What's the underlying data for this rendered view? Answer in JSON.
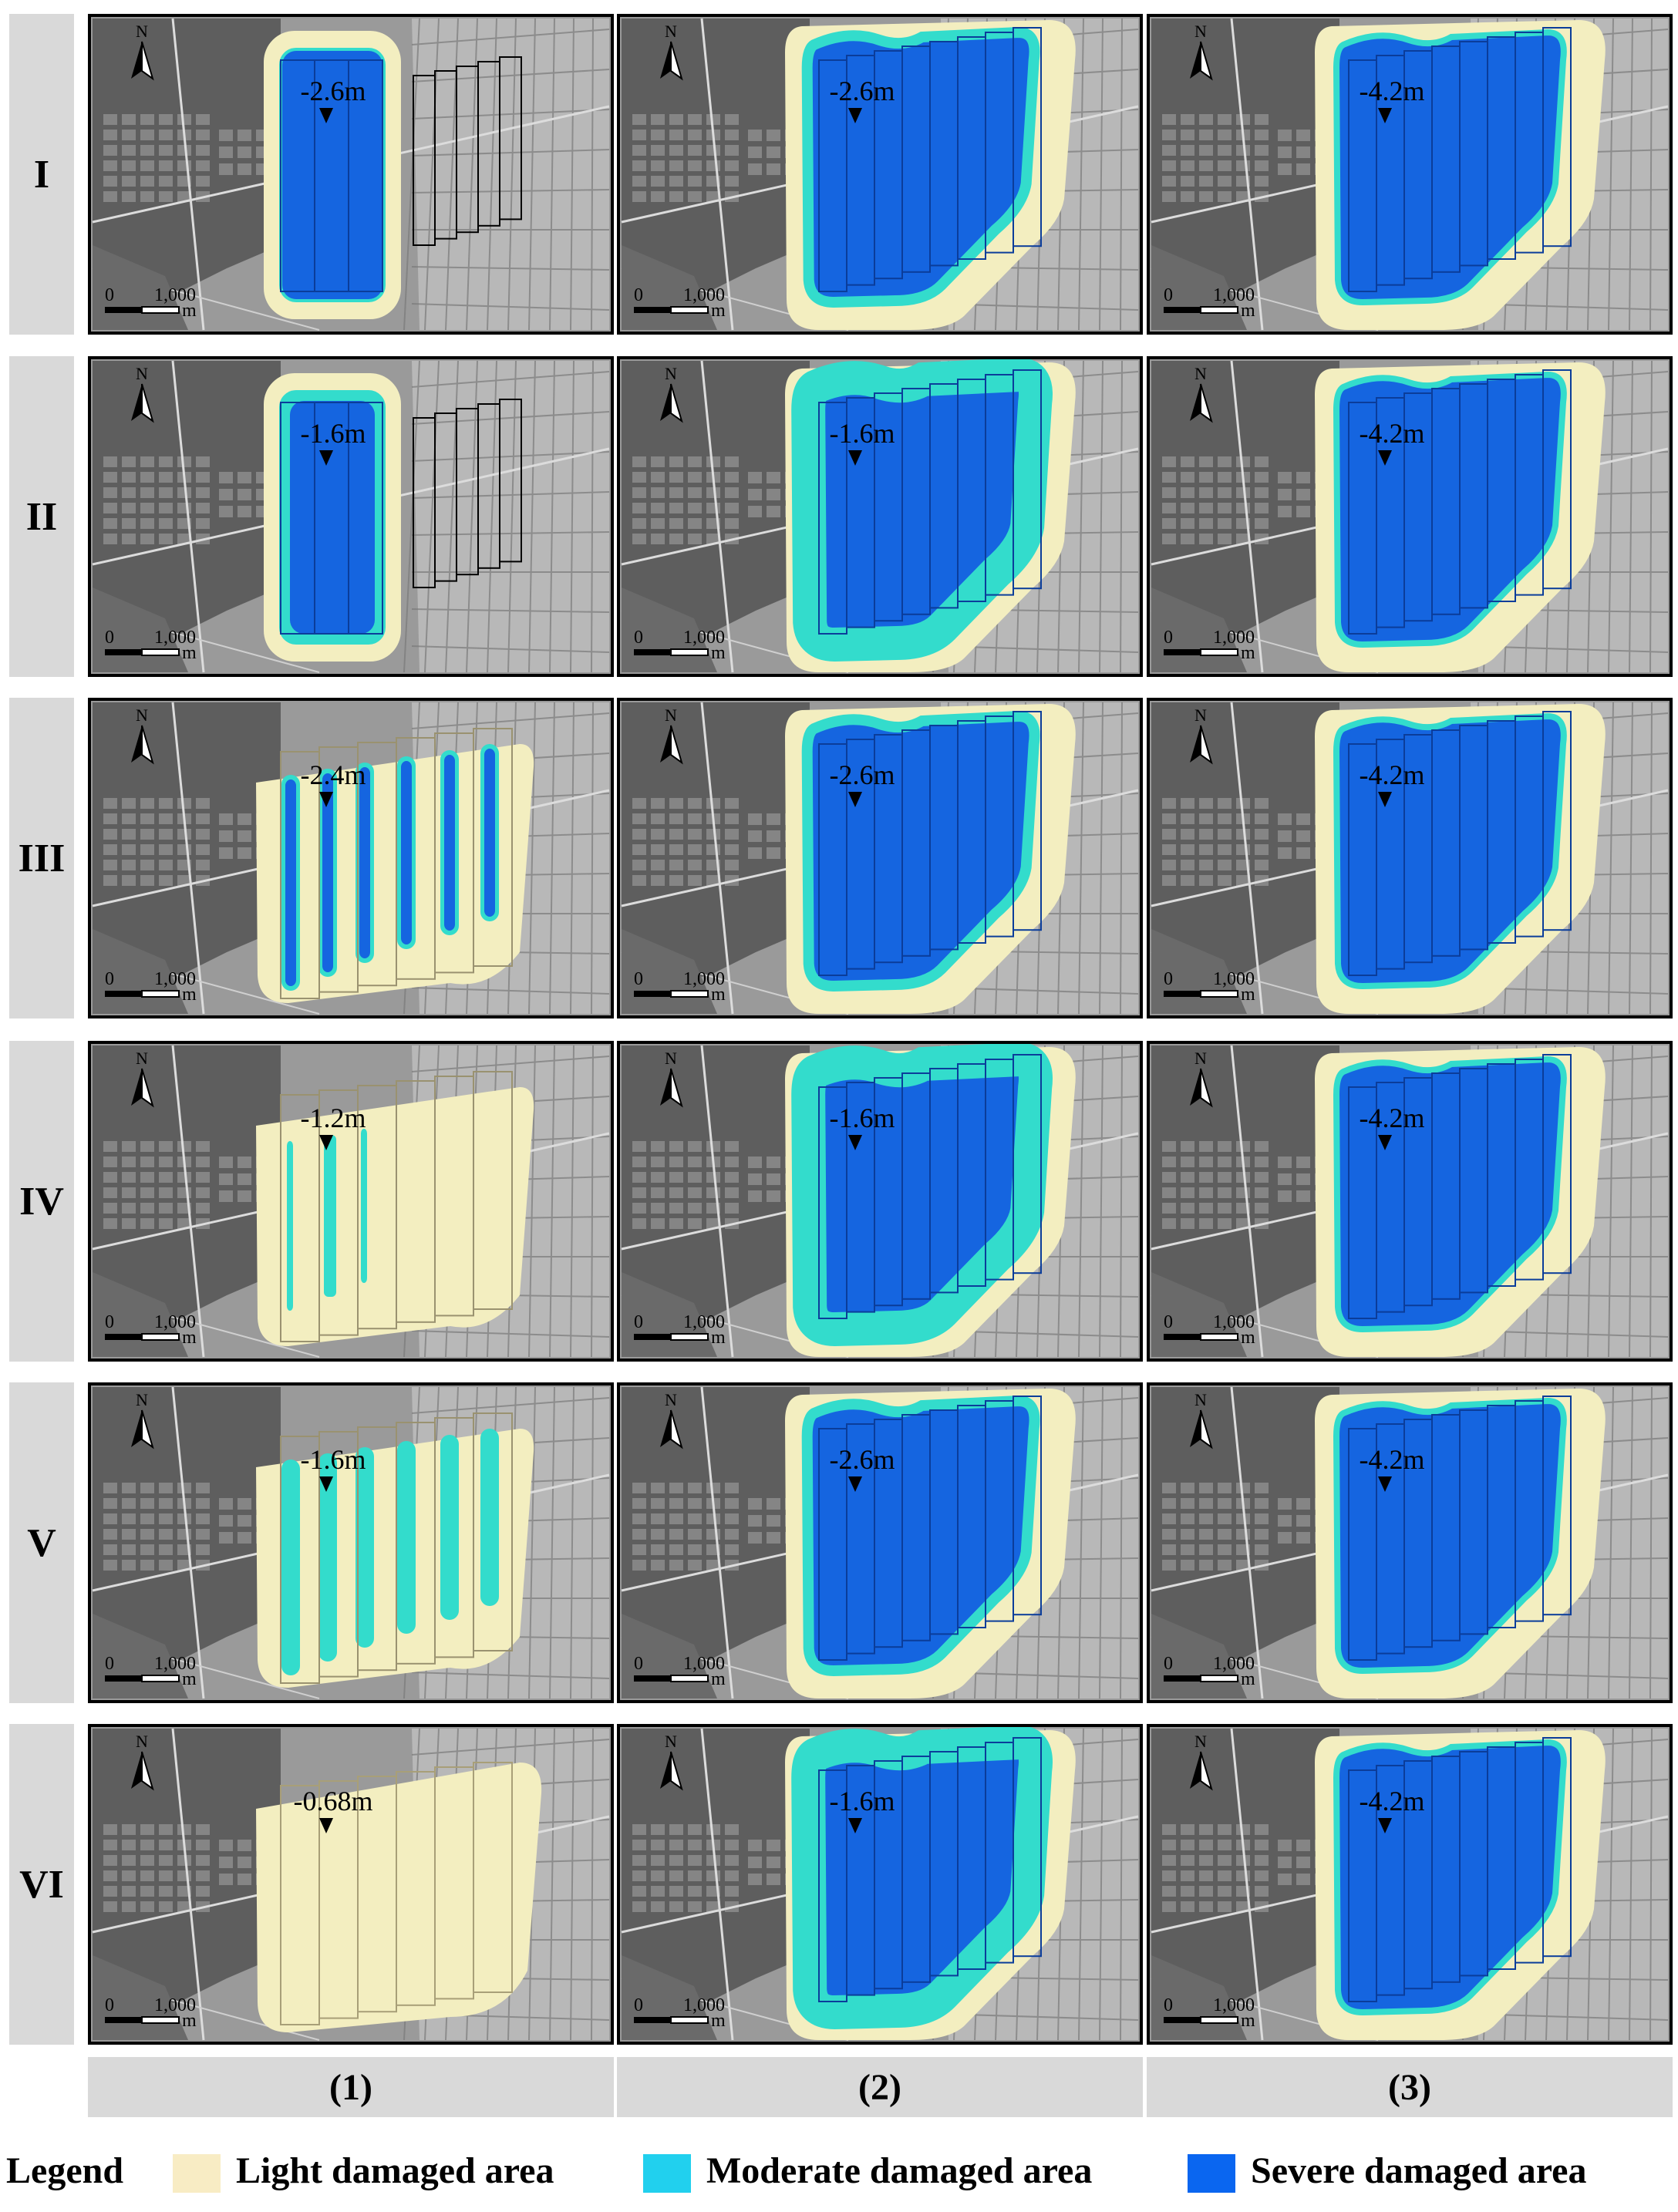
{
  "rows": [
    {
      "label": "I",
      "panels": [
        {
          "depth": "-2.6m",
          "variant": "c1-full"
        },
        {
          "depth": "-2.6m",
          "variant": "c2-severe"
        },
        {
          "depth": "-4.2m",
          "variant": "c3"
        }
      ]
    },
    {
      "label": "II",
      "panels": [
        {
          "depth": "-1.6m",
          "variant": "c1-mod"
        },
        {
          "depth": "-1.6m",
          "variant": "c2-mod"
        },
        {
          "depth": "-4.2m",
          "variant": "c3"
        }
      ]
    },
    {
      "label": "III",
      "panels": [
        {
          "depth": "-2.4m",
          "variant": "c1-strips-severe"
        },
        {
          "depth": "-2.6m",
          "variant": "c2-severe"
        },
        {
          "depth": "-4.2m",
          "variant": "c3"
        }
      ]
    },
    {
      "label": "IV",
      "panels": [
        {
          "depth": "-1.2m",
          "variant": "c1-strips-thin"
        },
        {
          "depth": "-1.6m",
          "variant": "c2-mod"
        },
        {
          "depth": "-4.2m",
          "variant": "c3"
        }
      ]
    },
    {
      "label": "V",
      "panels": [
        {
          "depth": "-1.6m",
          "variant": "c1-strips-mod"
        },
        {
          "depth": "-2.6m",
          "variant": "c2-severe"
        },
        {
          "depth": "-4.2m",
          "variant": "c3"
        }
      ]
    },
    {
      "label": "VI",
      "panels": [
        {
          "depth": "-0.68m",
          "variant": "c1-light"
        },
        {
          "depth": "-1.6m",
          "variant": "c2-mod"
        },
        {
          "depth": "-4.2m",
          "variant": "c3"
        }
      ]
    }
  ],
  "columns": [
    "(1)",
    "(2)",
    "(3)"
  ],
  "map": {
    "north": "N",
    "scale_zero": "0",
    "scale_value": "1,000",
    "scale_unit": "m"
  },
  "legend": {
    "title": "Legend",
    "items": [
      {
        "label": "Light damaged area",
        "color": "#f8ecc4"
      },
      {
        "label": "Moderate damaged area",
        "color": "#21d0ee"
      },
      {
        "label": "Severe damaged area",
        "color": "#0a66f0"
      }
    ]
  },
  "colors": {
    "light": "#f3eec0",
    "moderate": "#33dccc",
    "severe": "#1565e0",
    "map_bg": "#8c8c8c"
  }
}
